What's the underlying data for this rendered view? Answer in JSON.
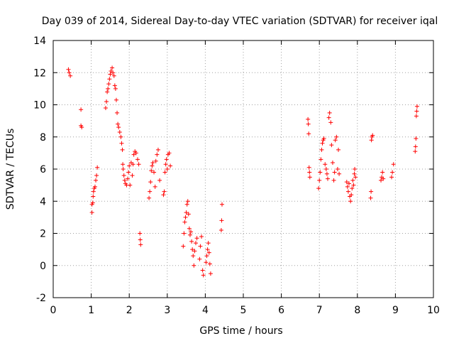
{
  "chart_data": {
    "type": "scatter",
    "title": "Day 039 of 2014, Sidereal Day-to-day VTEC variation (SDTVAR) for receiver iqal",
    "xlabel": "GPS time / hours",
    "ylabel": "SDTVAR / TECUs",
    "xlim": [
      0,
      10
    ],
    "ylim": [
      -2,
      14
    ],
    "x_ticks": [
      0,
      1,
      2,
      3,
      4,
      5,
      6,
      7,
      8,
      9,
      10
    ],
    "y_ticks": [
      -2,
      0,
      2,
      4,
      6,
      8,
      10,
      12,
      14
    ],
    "x_tick_labels": [
      "0",
      "1",
      "2",
      "3",
      "4",
      "5",
      "6",
      "7",
      "8",
      "9",
      "10"
    ],
    "y_tick_labels": [
      "-2",
      "0",
      "2",
      "4",
      "6",
      "8",
      "10",
      "12",
      "14"
    ],
    "grid": true,
    "marker": "+",
    "series": [
      {
        "name": "SDTVAR",
        "color": "#ff0000",
        "points": [
          [
            0.4,
            12.2
          ],
          [
            0.42,
            12.0
          ],
          [
            0.45,
            11.8
          ],
          [
            0.73,
            9.7
          ],
          [
            0.73,
            8.7
          ],
          [
            0.75,
            8.6
          ],
          [
            1.02,
            3.3
          ],
          [
            1.02,
            3.8
          ],
          [
            1.04,
            3.9
          ],
          [
            1.05,
            4.3
          ],
          [
            1.06,
            4.6
          ],
          [
            1.08,
            4.8
          ],
          [
            1.1,
            4.9
          ],
          [
            1.12,
            5.3
          ],
          [
            1.14,
            5.6
          ],
          [
            1.16,
            6.1
          ],
          [
            1.38,
            9.8
          ],
          [
            1.4,
            10.2
          ],
          [
            1.42,
            10.8
          ],
          [
            1.44,
            11.0
          ],
          [
            1.46,
            11.3
          ],
          [
            1.48,
            11.6
          ],
          [
            1.5,
            11.9
          ],
          [
            1.52,
            12.1
          ],
          [
            1.55,
            12.3
          ],
          [
            1.57,
            12.0
          ],
          [
            1.6,
            11.8
          ],
          [
            1.62,
            11.2
          ],
          [
            1.64,
            11.0
          ],
          [
            1.66,
            10.3
          ],
          [
            1.68,
            9.5
          ],
          [
            1.7,
            8.8
          ],
          [
            1.72,
            8.6
          ],
          [
            1.75,
            8.3
          ],
          [
            1.78,
            8.0
          ],
          [
            1.8,
            7.6
          ],
          [
            1.82,
            7.2
          ],
          [
            1.83,
            6.3
          ],
          [
            1.84,
            6.0
          ],
          [
            1.86,
            5.6
          ],
          [
            1.88,
            5.3
          ],
          [
            1.9,
            5.1
          ],
          [
            1.93,
            5.0
          ],
          [
            1.96,
            5.4
          ],
          [
            1.98,
            5.8
          ],
          [
            2.0,
            6.2
          ],
          [
            2.02,
            5.0
          ],
          [
            2.05,
            6.4
          ],
          [
            2.08,
            5.6
          ],
          [
            2.1,
            6.3
          ],
          [
            2.12,
            6.9
          ],
          [
            2.15,
            7.1
          ],
          [
            2.18,
            7.0
          ],
          [
            2.22,
            6.6
          ],
          [
            2.25,
            6.3
          ],
          [
            2.28,
            2.0
          ],
          [
            2.29,
            1.6
          ],
          [
            2.3,
            1.3
          ],
          [
            2.52,
            4.2
          ],
          [
            2.54,
            4.6
          ],
          [
            2.56,
            5.2
          ],
          [
            2.58,
            5.9
          ],
          [
            2.6,
            6.2
          ],
          [
            2.62,
            6.4
          ],
          [
            2.65,
            5.8
          ],
          [
            2.68,
            4.9
          ],
          [
            2.7,
            6.5
          ],
          [
            2.73,
            6.9
          ],
          [
            2.76,
            7.2
          ],
          [
            2.8,
            5.3
          ],
          [
            2.9,
            4.4
          ],
          [
            2.92,
            4.6
          ],
          [
            2.94,
            5.8
          ],
          [
            2.96,
            6.3
          ],
          [
            2.98,
            6.6
          ],
          [
            3.0,
            6.0
          ],
          [
            3.02,
            6.9
          ],
          [
            3.05,
            7.0
          ],
          [
            3.08,
            6.2
          ],
          [
            3.42,
            1.2
          ],
          [
            3.44,
            2.0
          ],
          [
            3.46,
            2.7
          ],
          [
            3.48,
            3.0
          ],
          [
            3.5,
            3.3
          ],
          [
            3.52,
            3.8
          ],
          [
            3.54,
            4.0
          ],
          [
            3.56,
            3.2
          ],
          [
            3.58,
            2.3
          ],
          [
            3.6,
            1.9
          ],
          [
            3.62,
            2.1
          ],
          [
            3.64,
            1.5
          ],
          [
            3.66,
            1.0
          ],
          [
            3.68,
            0.6
          ],
          [
            3.7,
            0.0
          ],
          [
            3.72,
            0.9
          ],
          [
            3.75,
            1.4
          ],
          [
            3.78,
            1.7
          ],
          [
            3.85,
            0.4
          ],
          [
            3.87,
            1.2
          ],
          [
            3.9,
            1.8
          ],
          [
            3.93,
            -0.3
          ],
          [
            3.95,
            -0.6
          ],
          [
            4.02,
            0.2
          ],
          [
            4.04,
            0.6
          ],
          [
            4.06,
            1.0
          ],
          [
            4.08,
            1.4
          ],
          [
            4.1,
            0.8
          ],
          [
            4.12,
            0.1
          ],
          [
            4.14,
            -0.5
          ],
          [
            4.42,
            2.2
          ],
          [
            4.43,
            2.8
          ],
          [
            4.44,
            3.8
          ],
          [
            6.7,
            9.1
          ],
          [
            6.71,
            8.8
          ],
          [
            6.72,
            8.2
          ],
          [
            6.73,
            6.1
          ],
          [
            6.74,
            5.8
          ],
          [
            6.75,
            5.5
          ],
          [
            6.98,
            4.8
          ],
          [
            7.0,
            5.3
          ],
          [
            7.02,
            5.8
          ],
          [
            7.04,
            6.6
          ],
          [
            7.06,
            7.2
          ],
          [
            7.08,
            7.6
          ],
          [
            7.1,
            7.8
          ],
          [
            7.12,
            7.9
          ],
          [
            7.15,
            6.3
          ],
          [
            7.18,
            6.0
          ],
          [
            7.2,
            5.7
          ],
          [
            7.22,
            5.4
          ],
          [
            7.25,
            9.2
          ],
          [
            7.27,
            9.5
          ],
          [
            7.3,
            8.9
          ],
          [
            7.32,
            7.5
          ],
          [
            7.35,
            6.4
          ],
          [
            7.38,
            5.3
          ],
          [
            7.4,
            5.8
          ],
          [
            7.42,
            7.8
          ],
          [
            7.45,
            8.0
          ],
          [
            7.48,
            6.0
          ],
          [
            7.5,
            7.2
          ],
          [
            7.52,
            5.7
          ],
          [
            7.72,
            5.2
          ],
          [
            7.74,
            4.9
          ],
          [
            7.76,
            4.6
          ],
          [
            7.78,
            5.1
          ],
          [
            7.8,
            4.3
          ],
          [
            7.82,
            4.0
          ],
          [
            7.84,
            4.4
          ],
          [
            7.86,
            4.8
          ],
          [
            7.88,
            5.3
          ],
          [
            7.9,
            5.0
          ],
          [
            7.92,
            5.7
          ],
          [
            7.93,
            6.0
          ],
          [
            7.95,
            5.5
          ],
          [
            8.35,
            4.2
          ],
          [
            8.36,
            4.6
          ],
          [
            8.37,
            7.8
          ],
          [
            8.38,
            8.0
          ],
          [
            8.4,
            8.1
          ],
          [
            8.62,
            5.3
          ],
          [
            8.64,
            5.5
          ],
          [
            8.66,
            5.8
          ],
          [
            8.68,
            5.4
          ],
          [
            8.9,
            5.5
          ],
          [
            8.92,
            5.8
          ],
          [
            8.95,
            6.3
          ],
          [
            9.52,
            7.1
          ],
          [
            9.53,
            7.4
          ],
          [
            9.54,
            7.9
          ],
          [
            9.55,
            9.3
          ],
          [
            9.56,
            9.6
          ],
          [
            9.57,
            9.9
          ]
        ]
      }
    ]
  }
}
